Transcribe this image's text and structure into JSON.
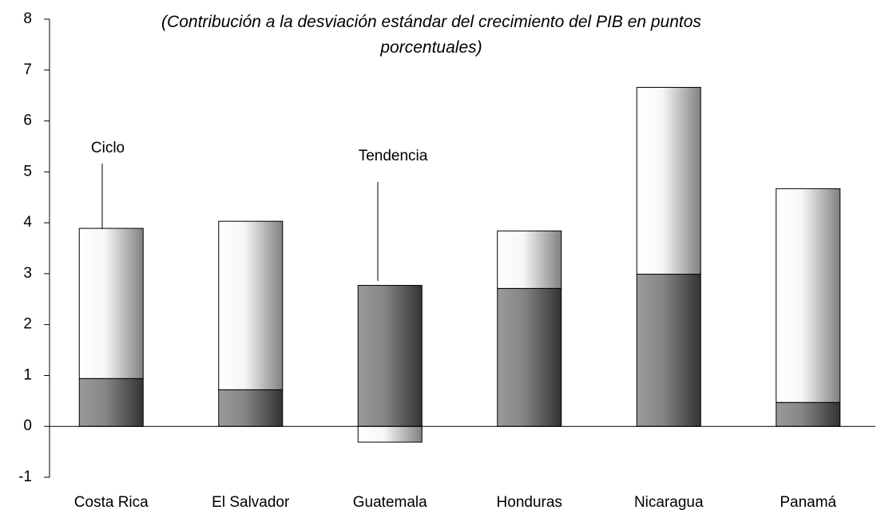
{
  "chart_data": {
    "type": "stacked_bar",
    "title": "(Contribución a la desviación estándar del crecimiento del PIB en puntos porcentuales)",
    "categories": [
      "Costa Rica",
      "El Salvador",
      "Guatemala",
      "Honduras",
      "Nicaragua",
      "Panamá"
    ],
    "series": [
      {
        "name": "Tendencia",
        "color": "#808080",
        "values": [
          0.94,
          0.72,
          2.77,
          2.71,
          2.99,
          0.47
        ]
      },
      {
        "name": "Ciclo",
        "color": "#ffffff",
        "values": [
          2.95,
          3.31,
          -0.31,
          1.13,
          3.67,
          4.2
        ]
      }
    ],
    "annotations": [
      "Ciclo",
      "Tendencia"
    ],
    "ylim": [
      -1,
      8
    ],
    "yticks": [
      -1,
      0,
      1,
      2,
      3,
      4,
      5,
      6,
      7,
      8
    ]
  }
}
